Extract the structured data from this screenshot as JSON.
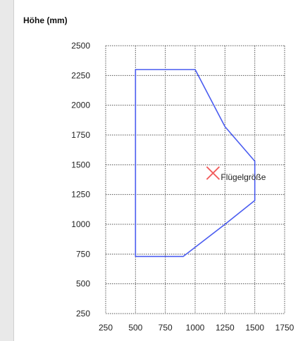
{
  "chart_data": {
    "type": "line",
    "title": "",
    "xlabel": "",
    "ylabel": "Höhe (mm)",
    "xlim": [
      250,
      1750
    ],
    "ylim": [
      250,
      2500
    ],
    "x_ticks": [
      "250",
      "500",
      "750",
      "1000",
      "1250",
      "1500",
      "1750"
    ],
    "y_ticks": [
      "250",
      "500",
      "750",
      "1000",
      "1250",
      "1500",
      "1750",
      "2000",
      "2250",
      "2500"
    ],
    "grid": true,
    "series": [
      {
        "color": "#4a5cf0",
        "closed": true,
        "points": [
          {
            "x": 500,
            "y": 2300
          },
          {
            "x": 1000,
            "y": 2300
          },
          {
            "x": 1250,
            "y": 1820
          },
          {
            "x": 1500,
            "y": 1530
          },
          {
            "x": 1500,
            "y": 1200
          },
          {
            "x": 1250,
            "y": 1000
          },
          {
            "x": 900,
            "y": 730
          },
          {
            "x": 500,
            "y": 730
          }
        ]
      }
    ],
    "annotations": [
      {
        "label": "Flügelgröße",
        "x": 1150,
        "y": 1430,
        "marker": "x",
        "color": "#f25c5c"
      }
    ]
  }
}
